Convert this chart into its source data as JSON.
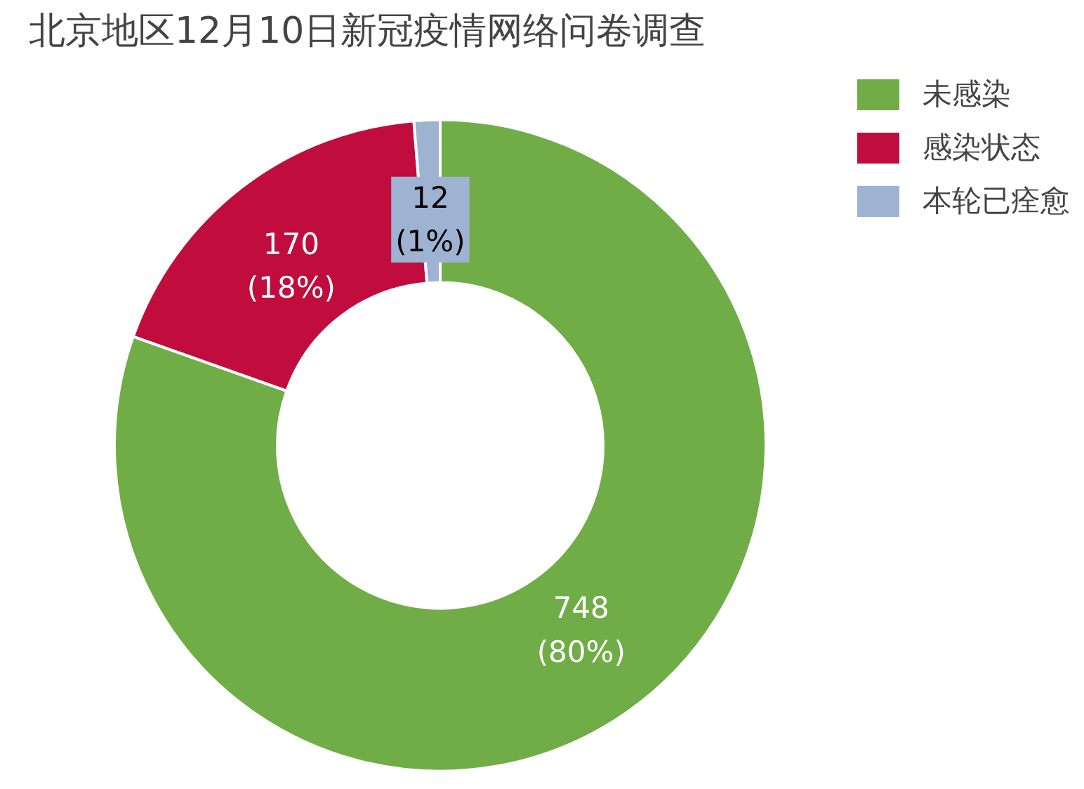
{
  "chart_data": {
    "type": "donut",
    "title": "北京地区12月10日新冠疫情网络问卷调查",
    "categories": [
      "未感染",
      "感染状态",
      "本轮已痊愈"
    ],
    "values": [
      748,
      170,
      12
    ],
    "colors": [
      "#70ad47",
      "#c00d3e",
      "#9eb2d2"
    ],
    "value_labels": [
      "748\n(80%)",
      "170\n(18%)",
      "12\n(1%)"
    ],
    "legend": "top right"
  }
}
